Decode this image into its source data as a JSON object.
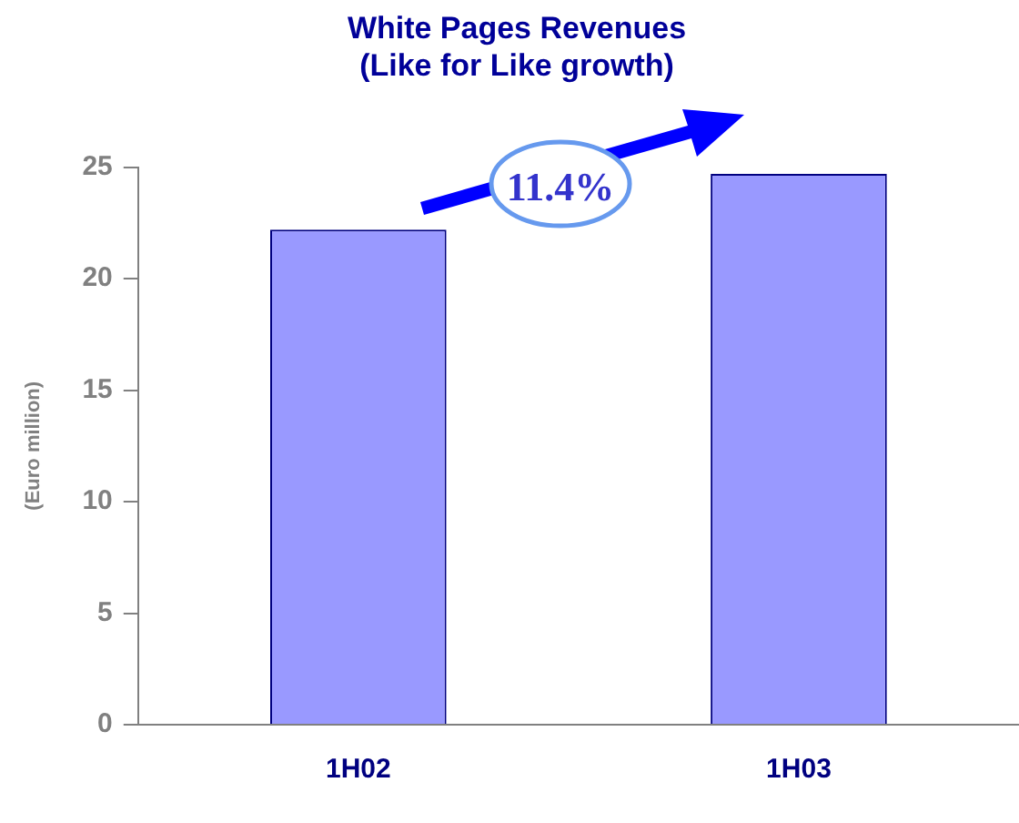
{
  "chart_data": {
    "type": "bar",
    "title": "White Pages Revenues\n(Like for Like growth)",
    "ylabel": "(Euro million)",
    "categories": [
      "1H02",
      "1H03"
    ],
    "values": [
      22.2,
      24.7
    ],
    "color": "#9999ff",
    "ylim": [
      0,
      25
    ],
    "yticks": [
      0,
      5,
      10,
      15,
      20,
      25
    ],
    "grid": false,
    "legend": false,
    "annotations": [
      "11.4%"
    ]
  }
}
